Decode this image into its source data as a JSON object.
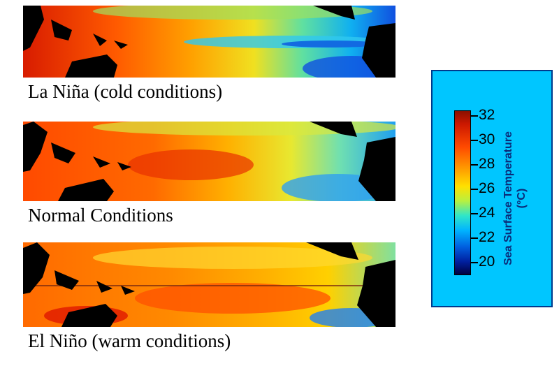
{
  "panels": [
    {
      "caption": "La Niña (cold conditions)",
      "state": "cold"
    },
    {
      "caption": "Normal Conditions",
      "state": "normal"
    },
    {
      "caption": "El Niño (warm conditions)",
      "state": "warm"
    }
  ],
  "legend": {
    "title_line1": "Sea Surface Temperature",
    "title_line2": "(°C)",
    "ticks": [
      "32",
      "30",
      "28",
      "26",
      "24",
      "22",
      "20"
    ],
    "colors": {
      "box": "#00c6ff",
      "land": "#000000",
      "hot": "#cc1800",
      "cold": "#0020a0"
    }
  }
}
